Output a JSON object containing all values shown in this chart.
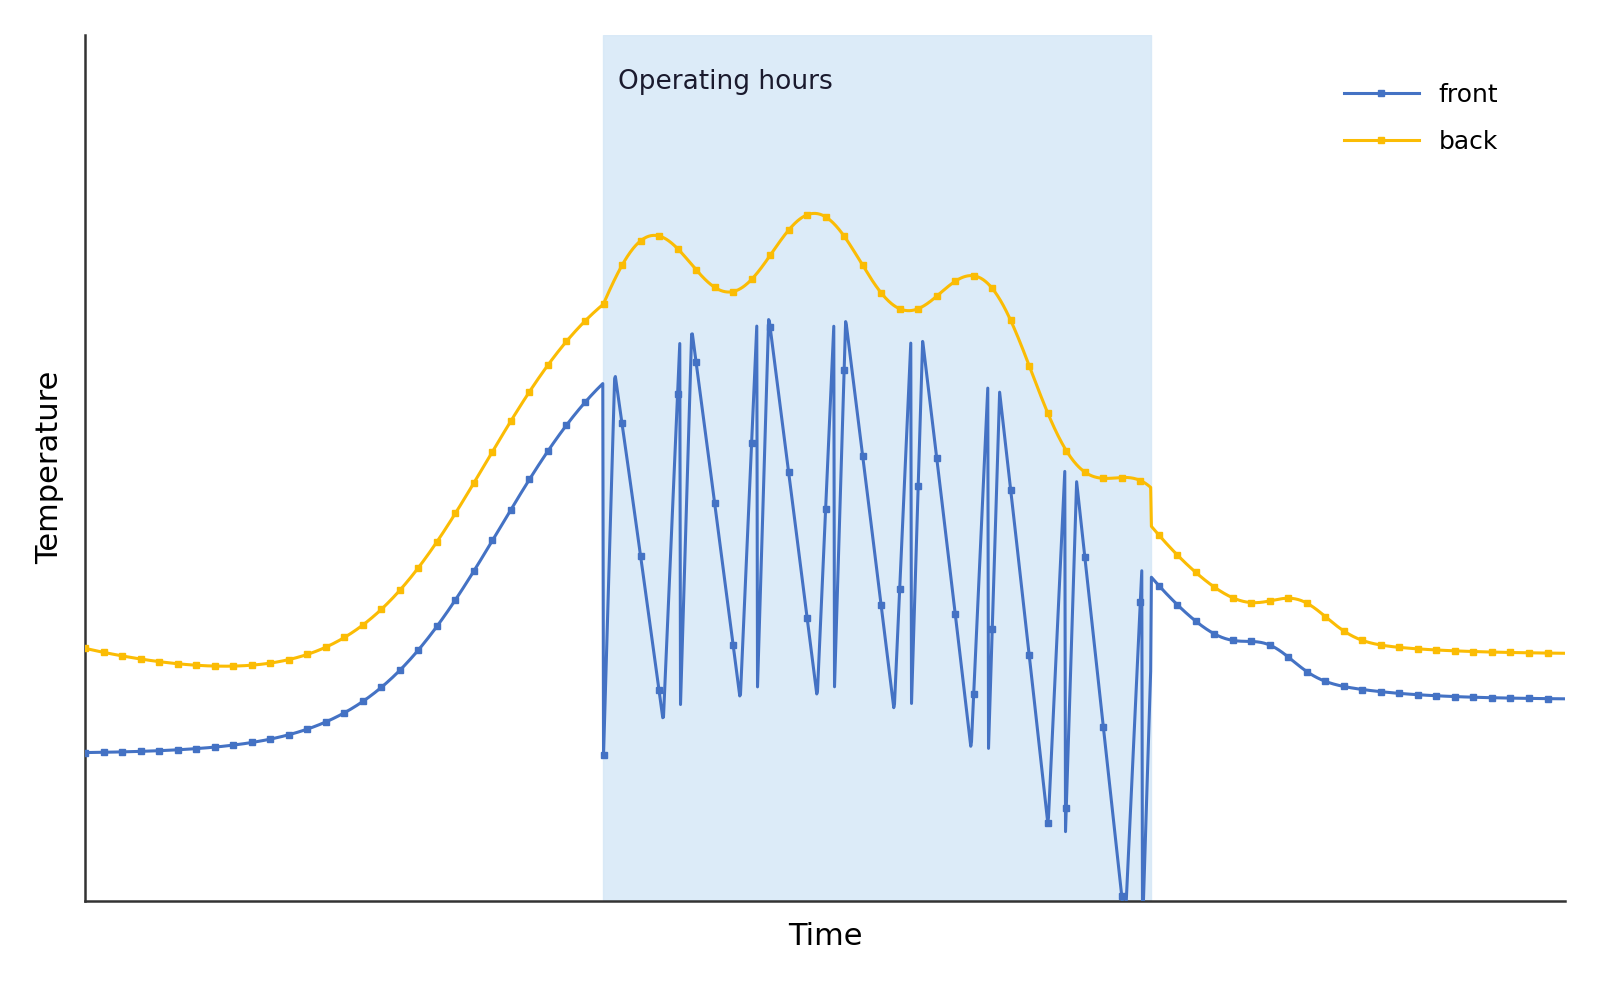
{
  "title": "",
  "xlabel": "Time",
  "ylabel": "Temperature",
  "xlabel_fontsize": 22,
  "ylabel_fontsize": 22,
  "legend_labels": [
    "front",
    "back"
  ],
  "line_colors": [
    "#4472C4",
    "#FBBC04"
  ],
  "marker": "s",
  "marker_size": 5,
  "line_width": 2.2,
  "operating_region_color": "#D6E8F7",
  "operating_region_alpha": 0.85,
  "operating_label": "Operating hours",
  "operating_label_fontsize": 19,
  "operating_x_start": 35,
  "operating_x_end": 72,
  "background_color": "#ffffff",
  "legend_fontsize": 18,
  "x_range": [
    0,
    100
  ],
  "y_range": [
    0,
    100
  ]
}
